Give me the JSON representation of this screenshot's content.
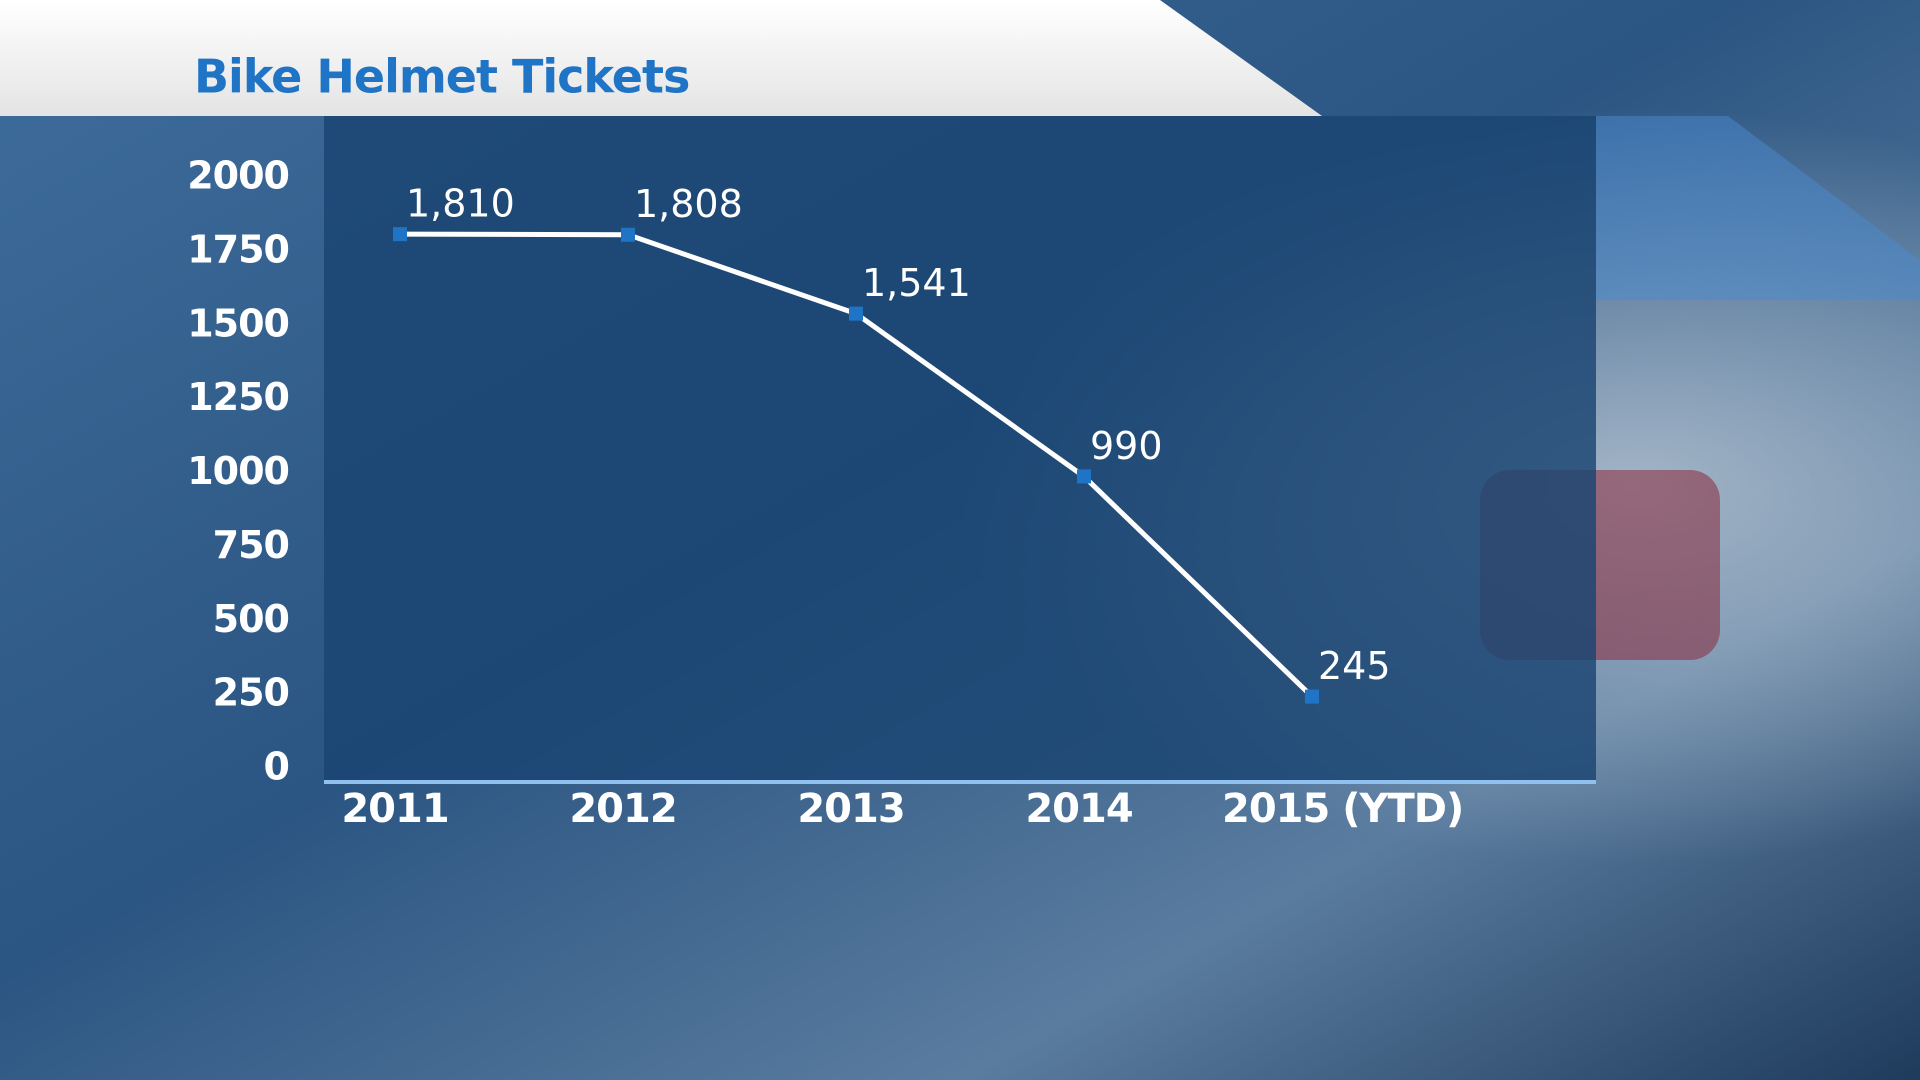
{
  "chart_data": {
    "type": "line",
    "title": "Bike Helmet Tickets",
    "categories": [
      "2011",
      "2012",
      "2013",
      "2014",
      "2015 (YTD)"
    ],
    "series": [
      {
        "name": "Bike helmet tickets",
        "color": "#ffffff",
        "values": [
          1810,
          1808,
          1541,
          990,
          245
        ],
        "value_labels": [
          "1,810",
          "1,808",
          "1,541",
          "990",
          "245"
        ]
      }
    ],
    "marker_color": "#1f74c6",
    "ylim": [
      0,
      2000
    ],
    "yticks": [
      0,
      250,
      500,
      750,
      1000,
      1250,
      1500,
      1750,
      2000
    ]
  }
}
